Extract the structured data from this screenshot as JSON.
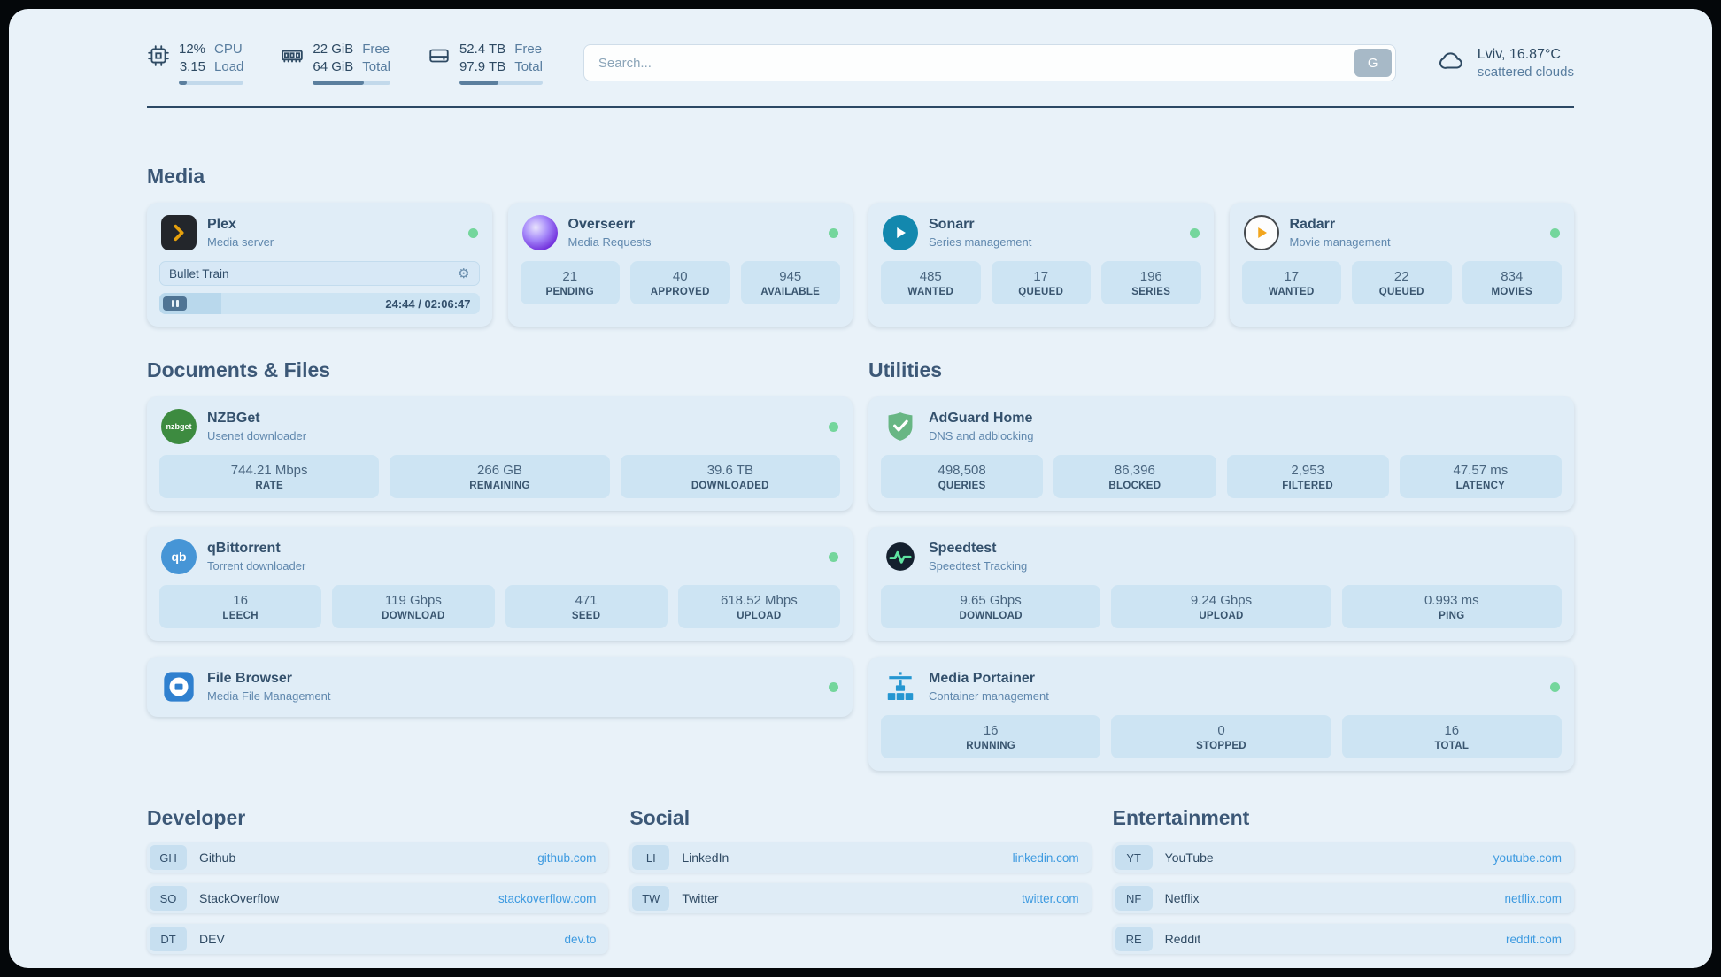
{
  "topbar": {
    "cpu": {
      "usage": "12%",
      "usage_label": "CPU",
      "load": "3.15",
      "load_label": "Load",
      "bar_pct": 12
    },
    "memory": {
      "free": "22 GiB",
      "free_label": "Free",
      "total": "64 GiB",
      "total_label": "Total",
      "bar_pct": 66
    },
    "disk": {
      "free": "52.4 TB",
      "free_label": "Free",
      "total": "97.9 TB",
      "total_label": "Total",
      "bar_pct": 47
    },
    "search": {
      "placeholder": "Search...",
      "button_label": "G"
    },
    "weather": {
      "location": "Lviv, 16.87°C",
      "condition": "scattered clouds"
    }
  },
  "icons": {
    "gear": "⚙",
    "nzbget_text": "nzbget",
    "qbittorrent_text": "qb"
  },
  "media": {
    "title": "Media",
    "plex": {
      "name": "Plex",
      "subtitle": "Media server",
      "stream": {
        "title": "Bullet Train",
        "time": "24:44 / 02:06:47",
        "progress_pct": 19.5
      }
    },
    "overseerr": {
      "name": "Overseerr",
      "subtitle": "Media Requests",
      "stats": [
        {
          "value": "21",
          "label": "PENDING"
        },
        {
          "value": "40",
          "label": "APPROVED"
        },
        {
          "value": "945",
          "label": "AVAILABLE"
        }
      ]
    },
    "sonarr": {
      "name": "Sonarr",
      "subtitle": "Series management",
      "stats": [
        {
          "value": "485",
          "label": "WANTED"
        },
        {
          "value": "17",
          "label": "QUEUED"
        },
        {
          "value": "196",
          "label": "SERIES"
        }
      ]
    },
    "radarr": {
      "name": "Radarr",
      "subtitle": "Movie management",
      "stats": [
        {
          "value": "17",
          "label": "WANTED"
        },
        {
          "value": "22",
          "label": "QUEUED"
        },
        {
          "value": "834",
          "label": "MOVIES"
        }
      ]
    }
  },
  "documents": {
    "title": "Documents & Files",
    "nzbget": {
      "name": "NZBGet",
      "subtitle": "Usenet downloader",
      "stats": [
        {
          "value": "744.21 Mbps",
          "label": "RATE"
        },
        {
          "value": "266 GB",
          "label": "REMAINING"
        },
        {
          "value": "39.6 TB",
          "label": "DOWNLOADED"
        }
      ]
    },
    "qbittorrent": {
      "name": "qBittorrent",
      "subtitle": "Torrent downloader",
      "stats": [
        {
          "value": "16",
          "label": "LEECH"
        },
        {
          "value": "119 Gbps",
          "label": "DOWNLOAD"
        },
        {
          "value": "471",
          "label": "SEED"
        },
        {
          "value": "618.52 Mbps",
          "label": "UPLOAD"
        }
      ]
    },
    "filebrowser": {
      "name": "File Browser",
      "subtitle": "Media File Management"
    }
  },
  "utilities": {
    "title": "Utilities",
    "adguard": {
      "name": "AdGuard Home",
      "subtitle": "DNS and adblocking",
      "stats": [
        {
          "value": "498,508",
          "label": "QUERIES"
        },
        {
          "value": "86,396",
          "label": "BLOCKED"
        },
        {
          "value": "2,953",
          "label": "FILTERED"
        },
        {
          "value": "47.57 ms",
          "label": "LATENCY"
        }
      ]
    },
    "speedtest": {
      "name": "Speedtest",
      "subtitle": "Speedtest Tracking",
      "stats": [
        {
          "value": "9.65 Gbps",
          "label": "DOWNLOAD"
        },
        {
          "value": "9.24 Gbps",
          "label": "UPLOAD"
        },
        {
          "value": "0.993 ms",
          "label": "PING"
        }
      ]
    },
    "portainer": {
      "name": "Media Portainer",
      "subtitle": "Container management",
      "stats": [
        {
          "value": "16",
          "label": "RUNNING"
        },
        {
          "value": "0",
          "label": "STOPPED"
        },
        {
          "value": "16",
          "label": "TOTAL"
        }
      ]
    }
  },
  "bookmarks": {
    "developer": {
      "title": "Developer",
      "items": [
        {
          "abbr": "GH",
          "name": "Github",
          "url": "github.com"
        },
        {
          "abbr": "SO",
          "name": "StackOverflow",
          "url": "stackoverflow.com"
        },
        {
          "abbr": "DT",
          "name": "DEV",
          "url": "dev.to"
        }
      ]
    },
    "social": {
      "title": "Social",
      "items": [
        {
          "abbr": "LI",
          "name": "LinkedIn",
          "url": "linkedin.com"
        },
        {
          "abbr": "TW",
          "name": "Twitter",
          "url": "twitter.com"
        }
      ]
    },
    "entertainment": {
      "title": "Entertainment",
      "items": [
        {
          "abbr": "YT",
          "name": "YouTube",
          "url": "youtube.com"
        },
        {
          "abbr": "NF",
          "name": "Netflix",
          "url": "netflix.com"
        },
        {
          "abbr": "RE",
          "name": "Reddit",
          "url": "reddit.com"
        }
      ]
    }
  },
  "colors": {
    "background": "#e9f2f9",
    "card": "#e0edf7",
    "stat_tile": "#cde4f3",
    "link": "#3d9ae0",
    "status_green": "#74d69c",
    "divider": "#2c4965"
  }
}
